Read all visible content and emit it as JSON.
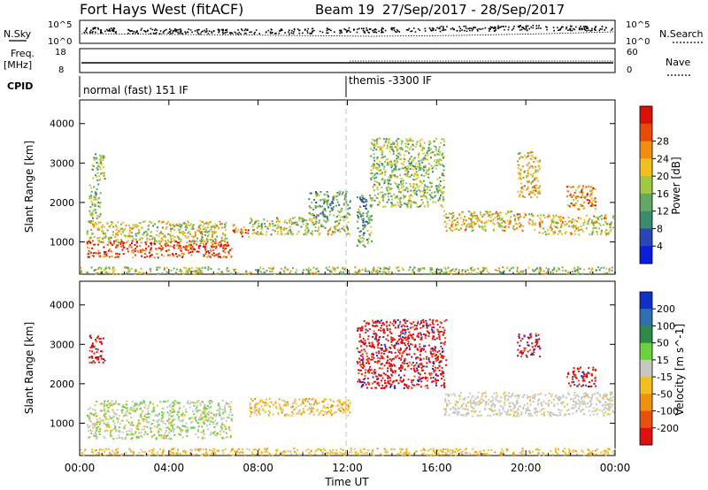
{
  "header": {
    "station": "Fort Hays West (fitACF)",
    "beam": "Beam 19",
    "dates": "27/Sep/2017 - 28/Sep/2017"
  },
  "strips": {
    "nsky_label": "N.Sky",
    "nsky_ticks": [
      "10^5",
      "10^0"
    ],
    "nsearch_label": "N.Search",
    "nsearch_ticks": [
      "10^5",
      "10^0"
    ],
    "freq_label": "Freq.",
    "freq_unit": "[MHz]",
    "freq_ticks": [
      "18",
      "8"
    ],
    "nave_label": "Nave",
    "nave_ticks": [
      "60",
      "0"
    ],
    "cpid_label": "CPID",
    "cpid_segments": [
      {
        "label": "normal (fast) 151 IF",
        "start_hour": 0
      },
      {
        "label": "themis -3300 IF",
        "start_hour": 12
      }
    ]
  },
  "chart_data": [
    {
      "type": "heatmap",
      "parameter": "power",
      "ylabel": "Slant Range [km]",
      "yticks": [
        1000,
        2000,
        3000,
        4000
      ],
      "ylim": [
        180,
        4600
      ],
      "xlim": [
        0,
        24
      ],
      "colorbar": {
        "label": "Power [dB]",
        "ticks": [
          "4",
          "8",
          "12",
          "16",
          "20",
          "24",
          "28"
        ],
        "colors": [
          "#0a1ed8",
          "#2846b4",
          "#3a8c6e",
          "#64a864",
          "#a0c840",
          "#f0c020",
          "#f08c10",
          "#e84a08",
          "#d81008"
        ]
      },
      "echo_regions": [
        {
          "h0": 0.3,
          "h1": 6.8,
          "r0": 620,
          "r1": 1050,
          "level": 0.88
        },
        {
          "h0": 0.3,
          "h1": 6.6,
          "r0": 1000,
          "r1": 1550,
          "level": 0.55
        },
        {
          "h0": 0.4,
          "h1": 0.9,
          "r0": 1500,
          "r1": 2600,
          "level": 0.45
        },
        {
          "h0": 0.5,
          "h1": 1.1,
          "r0": 2550,
          "r1": 3250,
          "level": 0.45
        },
        {
          "h0": 6.8,
          "h1": 7.6,
          "r0": 1150,
          "r1": 1450,
          "level": 0.75
        },
        {
          "h0": 7.6,
          "h1": 12.1,
          "r0": 1200,
          "r1": 1650,
          "level": 0.5
        },
        {
          "h0": 10.2,
          "h1": 12.1,
          "r0": 1650,
          "r1": 2300,
          "level": 0.35
        },
        {
          "h0": 12.4,
          "h1": 13.1,
          "r0": 900,
          "r1": 2200,
          "level": 0.35
        },
        {
          "h0": 13.0,
          "h1": 16.3,
          "r0": 1900,
          "r1": 3650,
          "level": 0.45
        },
        {
          "h0": 16.3,
          "h1": 20.5,
          "r0": 1300,
          "r1": 1800,
          "level": 0.62
        },
        {
          "h0": 20.5,
          "h1": 23.9,
          "r0": 1200,
          "r1": 1700,
          "level": 0.6
        },
        {
          "h0": 19.6,
          "h1": 20.6,
          "r0": 2150,
          "r1": 3300,
          "level": 0.62
        },
        {
          "h0": 21.8,
          "h1": 23.1,
          "r0": 1850,
          "r1": 2450,
          "level": 0.7
        },
        {
          "h0": 0.0,
          "h1": 24.0,
          "r0": 200,
          "r1": 380,
          "level": 0.5
        }
      ]
    },
    {
      "type": "heatmap",
      "parameter": "velocity",
      "ylabel": "Slant Range [km]",
      "xlabel": "Time UT",
      "xticks": [
        "00:00",
        "04:00",
        "08:00",
        "12:00",
        "16:00",
        "20:00",
        "00:00"
      ],
      "yticks": [
        1000,
        2000,
        3000,
        4000
      ],
      "ylim": [
        180,
        4600
      ],
      "xlim": [
        0,
        24
      ],
      "colorbar": {
        "label": "Velocity [m s^-1]",
        "ticks": [
          "200",
          "100",
          "50",
          "15",
          "-15",
          "-50",
          "-100",
          "-200"
        ],
        "colors": [
          "#1030c8",
          "#2f6fb0",
          "#2f8a4a",
          "#6cd040",
          "#c8c8c0",
          "#f0c020",
          "#f09010",
          "#e85010",
          "#e01010"
        ]
      },
      "echo_regions": [
        {
          "h0": 0.3,
          "h1": 6.8,
          "r0": 620,
          "r1": 1600,
          "level": "ground/green"
        },
        {
          "h0": 0.4,
          "h1": 1.1,
          "r0": 2550,
          "r1": 3250,
          "level": "red"
        },
        {
          "h0": 7.6,
          "h1": 12.1,
          "r0": 1200,
          "r1": 1650,
          "level": "orange"
        },
        {
          "h0": 12.4,
          "h1": 16.4,
          "r0": 1900,
          "r1": 3650,
          "level": "red"
        },
        {
          "h0": 16.3,
          "h1": 23.9,
          "r0": 1200,
          "r1": 1800,
          "level": "ground"
        },
        {
          "h0": 19.6,
          "h1": 20.6,
          "r0": 2700,
          "r1": 3300,
          "level": "red"
        },
        {
          "h0": 21.8,
          "h1": 23.1,
          "r0": 1950,
          "r1": 2450,
          "level": "red"
        },
        {
          "h0": 0.0,
          "h1": 24.0,
          "r0": 200,
          "r1": 380,
          "level": "orange"
        }
      ]
    }
  ]
}
